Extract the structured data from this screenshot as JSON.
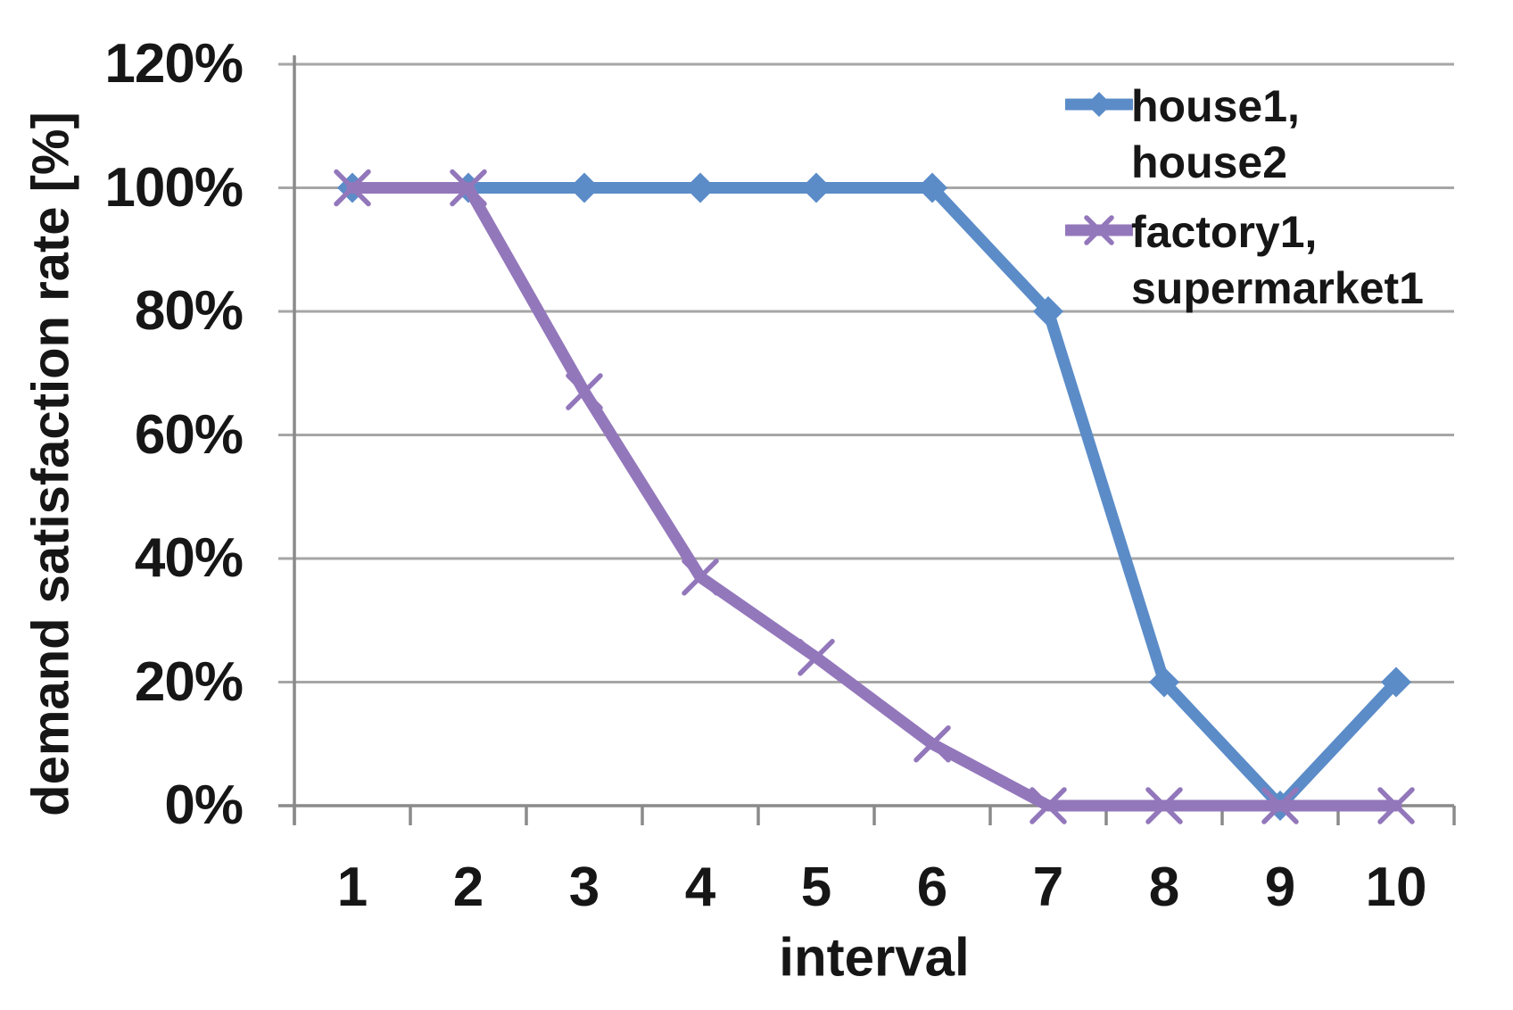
{
  "chart_data": {
    "type": "line",
    "xlabel": "interval",
    "ylabel": "demand satisfaction rate [%]",
    "categories": [
      "1",
      "2",
      "3",
      "4",
      "5",
      "6",
      "7",
      "8",
      "9",
      "10"
    ],
    "y_tick_labels": [
      "120%",
      "100%",
      "80%",
      "60%",
      "40%",
      "20%",
      "0%"
    ],
    "ylim": [
      0,
      120
    ],
    "y_step": 20,
    "grid": true,
    "legend_position": "top-right",
    "series": [
      {
        "name": "house1, house2",
        "name_lines": [
          "house1,",
          "house2"
        ],
        "marker": "diamond",
        "color": "#5b8cc8",
        "values": [
          100,
          100,
          100,
          100,
          100,
          100,
          80,
          20,
          0,
          20
        ]
      },
      {
        "name": "factory1, supermarket1",
        "name_lines": [
          "factory1,",
          "supermarket1"
        ],
        "marker": "x",
        "color": "#9377bb",
        "values": [
          100,
          100,
          67,
          37,
          24,
          10,
          0,
          0,
          0,
          0
        ]
      }
    ]
  },
  "colors": {
    "gridline": "#a6a6a6",
    "axis": "#8a8a8a",
    "text": "#161616"
  }
}
